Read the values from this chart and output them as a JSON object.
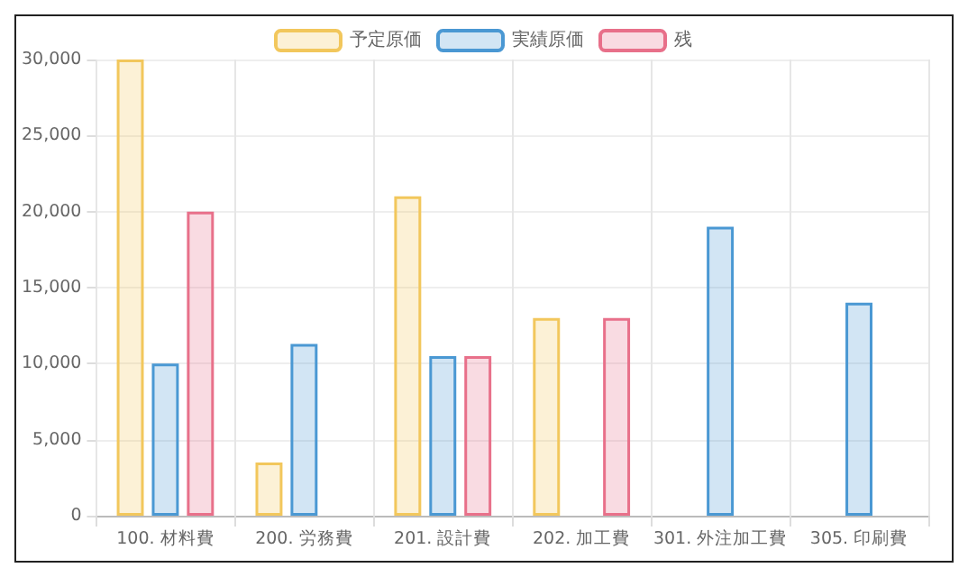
{
  "chart_data": {
    "type": "bar",
    "categories": [
      "100. 材料費",
      "200. 労務費",
      "201. 設計費",
      "202. 加工費",
      "301. 外注加工費",
      "305. 印刷費"
    ],
    "series": [
      {
        "name": "予定原価",
        "color": "#f2c75c",
        "values": [
          30000,
          3500,
          21000,
          13000,
          null,
          null
        ]
      },
      {
        "name": "実績原価",
        "color": "#4a98d3",
        "values": [
          10000,
          11300,
          10500,
          null,
          19000,
          14000
        ]
      },
      {
        "name": "残",
        "color": "#e8708a",
        "values": [
          20000,
          null,
          10500,
          13000,
          null,
          null
        ]
      }
    ],
    "ylim": [
      0,
      30000
    ],
    "yticks": [
      0,
      {
        "value": 5000,
        "label": "5,000"
      },
      {
        "value": 10000,
        "label": "10,000"
      },
      {
        "value": 15000,
        "label": "15,000"
      },
      {
        "value": 20000,
        "label": "20,000"
      },
      {
        "value": 25000,
        "label": "25,000"
      },
      {
        "value": 30000,
        "label": "30,000"
      }
    ],
    "grid": true,
    "legend": "top"
  }
}
